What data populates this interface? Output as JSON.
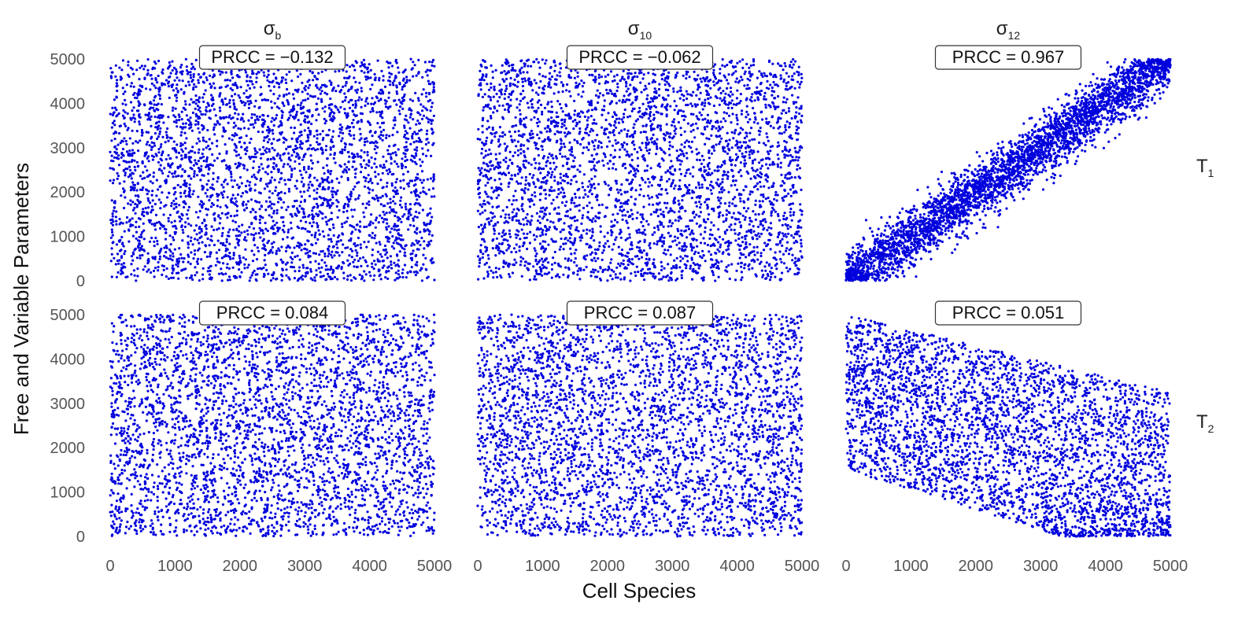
{
  "chart_data": {
    "type": "scatter",
    "xlabel": "Cell Species",
    "ylabel": "Free and Variable Parameters",
    "xlim": [
      0,
      5000
    ],
    "ylim": [
      0,
      5000
    ],
    "x_ticks": [
      "0",
      "1000",
      "2000",
      "3000",
      "4000",
      "5000"
    ],
    "y_ticks": [
      "0",
      "1000",
      "2000",
      "3000",
      "4000",
      "5000"
    ],
    "marker_color": "#0000dd",
    "grid": false,
    "columns": [
      {
        "symbol": "σ",
        "subscript": "b"
      },
      {
        "symbol": "σ",
        "subscript": "10"
      },
      {
        "symbol": "σ",
        "subscript": "12"
      }
    ],
    "rows": [
      {
        "symbol": "T",
        "subscript": "1"
      },
      {
        "symbol": "T",
        "subscript": "2"
      }
    ],
    "panels": [
      {
        "row": 0,
        "col": 0,
        "prcc": "PRCC = −0.132",
        "pattern": "uniform"
      },
      {
        "row": 0,
        "col": 1,
        "prcc": "PRCC = −0.062",
        "pattern": "uniform"
      },
      {
        "row": 0,
        "col": 2,
        "prcc": "PRCC = 0.967",
        "pattern": "diagonal"
      },
      {
        "row": 1,
        "col": 0,
        "prcc": "PRCC = 0.084",
        "pattern": "uniform"
      },
      {
        "row": 1,
        "col": 1,
        "prcc": "PRCC = 0.087",
        "pattern": "uniform"
      },
      {
        "row": 1,
        "col": 2,
        "prcc": "PRCC = 0.051",
        "pattern": "wedge"
      }
    ]
  }
}
